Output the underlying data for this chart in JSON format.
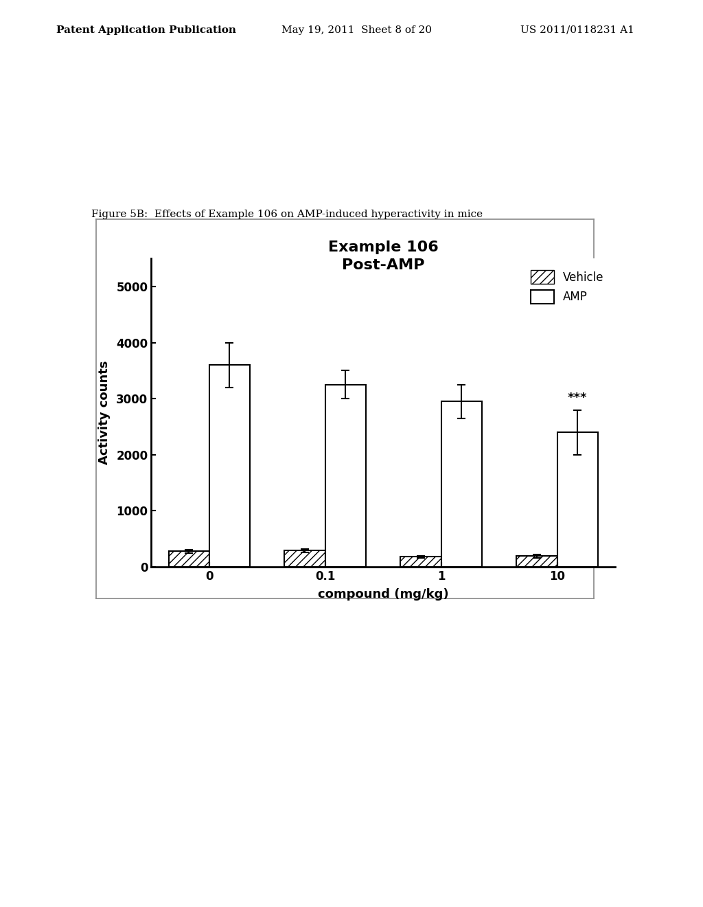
{
  "title_line1": "Example 106",
  "title_line2": "Post-AMP",
  "xlabel": "compound (mg/kg)",
  "ylabel": "Activity counts",
  "caption": "Figure 5B:  Effects of Example 106 on AMP-induced hyperactivity in mice",
  "header_left": "Patent Application Publication",
  "header_mid": "May 19, 2011  Sheet 8 of 20",
  "header_right": "US 2011/0118231 A1",
  "groups": [
    "0",
    "0.1",
    "1",
    "10"
  ],
  "vehicle_values": [
    280,
    290,
    180,
    190
  ],
  "vehicle_errors": [
    30,
    30,
    20,
    25
  ],
  "amp_values": [
    3600,
    3250,
    2950,
    2400
  ],
  "amp_errors": [
    400,
    250,
    300,
    400
  ],
  "ylim": [
    0,
    5500
  ],
  "yticks": [
    0,
    1000,
    2000,
    3000,
    4000,
    5000
  ],
  "significance_label": "***",
  "significance_group_index": 3,
  "bar_width": 0.35,
  "vehicle_color": "white",
  "vehicle_hatch": "///",
  "amp_color": "white",
  "amp_hatch": "",
  "edge_color": "black",
  "background_color": "white",
  "legend_vehicle": "Vehicle",
  "legend_amp": "AMP"
}
